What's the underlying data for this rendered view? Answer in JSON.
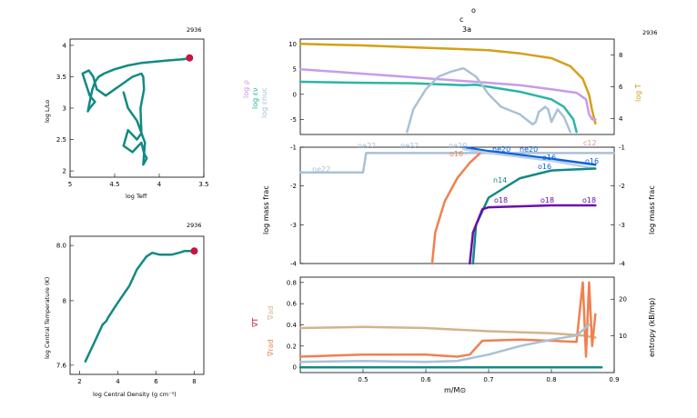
{
  "header": {
    "title_top": "c",
    "title_mid": "3a",
    "title_sup": "o"
  },
  "panels": {
    "hr": {
      "model": "2936",
      "xlabel": "log Teff",
      "ylabel": "log L/Lo",
      "xticks": [
        "5",
        "4.5",
        "4",
        "3.5"
      ],
      "yticks": [
        "4",
        "3.5",
        "3",
        "2.5",
        "2"
      ],
      "dot_color": "#c8143c",
      "line_color": "#128a84"
    },
    "core": {
      "model": "2936",
      "xlabel": "log Central Density (g cm⁻³)",
      "ylabel": "log Central Temperature (K)",
      "xticks": [
        "2",
        "4",
        "6",
        "8"
      ],
      "yticks": [
        "8.0",
        "8",
        "7.6"
      ],
      "dot_color": "#c8143c",
      "line_color": "#128a84"
    },
    "profile": {
      "model": "2936",
      "left_ticks": [
        "10",
        "5",
        "0",
        "-5"
      ],
      "right_ticks": [
        "8",
        "6",
        "4"
      ],
      "left_labels": [
        "log ρ",
        "log εν",
        "log εnuc"
      ],
      "right_label": "log T"
    },
    "abund": {
      "ylabel_left": "log mass frac",
      "ylabel_right": "log mass frac",
      "yticks": [
        "-1",
        "-2",
        "-3",
        "-4"
      ],
      "species": [
        "ne22",
        "ne22",
        "ne22",
        "ne20",
        "o16",
        "ne20",
        "ne20",
        "c12",
        "o16",
        "n14",
        "o16",
        "o16",
        "o18",
        "o18",
        "o18"
      ]
    },
    "mix": {
      "xlabel": "m/M⊙",
      "ylabel_right": "entropy (kB/mp)",
      "left_ticks": [
        "0.8",
        "0.6",
        "0.4",
        "0.2",
        "0"
      ],
      "right_ticks": [
        "20",
        "10"
      ],
      "xticks": [
        "0.5",
        "0.6",
        "0.7",
        "0.8",
        "0.9"
      ],
      "labels": [
        "∇ad",
        "∇T",
        "∇rad"
      ]
    }
  },
  "chart_data": [
    {
      "type": "line",
      "title": "2936",
      "xlabel": "log Teff",
      "ylabel": "log L/Lo",
      "xlim": [
        5.0,
        3.5
      ],
      "ylim": [
        1.9,
        4.1
      ],
      "series": [
        {
          "x": [
            4.75,
            4.72,
            4.68,
            4.62,
            4.5,
            4.35,
            4.2,
            4.05,
            3.9,
            3.8,
            3.72,
            3.66
          ],
          "y": [
            3.3,
            3.42,
            3.5,
            3.55,
            3.62,
            3.68,
            3.72,
            3.74,
            3.76,
            3.77,
            3.78,
            3.8
          ]
        },
        {
          "x": [
            4.75,
            4.78,
            4.8,
            4.78,
            4.75,
            4.72,
            4.78,
            4.86,
            4.79,
            4.74,
            4.7,
            4.6,
            4.5,
            4.3,
            4.2,
            4.18,
            4.17,
            4.21,
            4.2,
            4.25,
            4.35,
            4.4,
            4.3,
            4.2,
            4.17,
            4.14,
            4.18,
            4.16,
            4.25,
            4.35,
            4.4
          ],
          "y": [
            3.3,
            3.1,
            2.95,
            3.0,
            3.05,
            3.1,
            3.2,
            3.55,
            3.6,
            3.5,
            3.3,
            3.2,
            3.3,
            3.5,
            3.55,
            3.5,
            3.3,
            3.0,
            2.6,
            2.5,
            2.65,
            2.4,
            2.3,
            2.45,
            2.28,
            2.2,
            2.1,
            2.45,
            2.8,
            3.0,
            3.25
          ]
        }
      ],
      "marker": {
        "x": 3.66,
        "y": 3.8
      }
    },
    {
      "type": "line",
      "title": "2936",
      "xlabel": "log Central Density (g cm⁻³)",
      "ylabel": "log Central Temperature (K)",
      "xlim": [
        1.5,
        8.5
      ],
      "ylim": [
        7.45,
        8.2
      ],
      "series": [
        {
          "x": [
            2.3,
            2.8,
            3.2,
            3.3,
            3.4,
            3.5,
            4.0,
            4.6,
            5.0,
            5.5,
            5.8,
            6.2,
            6.8,
            7.2,
            7.5,
            7.8,
            8.0
          ],
          "y": [
            7.52,
            7.63,
            7.72,
            7.73,
            7.74,
            7.76,
            7.84,
            7.93,
            8.02,
            8.09,
            8.11,
            8.1,
            8.1,
            8.11,
            8.12,
            8.12,
            8.12
          ]
        }
      ],
      "marker": {
        "x": 8.0,
        "y": 8.12
      }
    },
    {
      "type": "line",
      "xlabel": "m/M⊙",
      "xlim": [
        0.4,
        0.9
      ],
      "ylim": [
        -8,
        11
      ],
      "y2lim": [
        3,
        9
      ],
      "series": [
        {
          "name": "log T",
          "axis": "right",
          "color": "#d4a017",
          "x": [
            0.4,
            0.5,
            0.6,
            0.7,
            0.75,
            0.8,
            0.83,
            0.85,
            0.86,
            0.865,
            0.87
          ],
          "y": [
            8.7,
            8.6,
            8.45,
            8.3,
            8.1,
            7.8,
            7.3,
            6.5,
            5.5,
            4.5,
            3.7
          ]
        },
        {
          "name": "log ρ",
          "axis": "left",
          "color": "#c99be8",
          "x": [
            0.4,
            0.5,
            0.6,
            0.7,
            0.75,
            0.8,
            0.84,
            0.855,
            0.86,
            0.865,
            0.87
          ],
          "y": [
            5,
            4.1,
            3.2,
            2.3,
            1.8,
            1.0,
            0.3,
            -1.0,
            -4.0,
            -5.0,
            -5.0
          ]
        },
        {
          "name": "log εν",
          "axis": "left",
          "color": "#2ab5a8",
          "x": [
            0.4,
            0.5,
            0.58,
            0.62,
            0.66,
            0.68,
            0.7,
            0.75,
            0.8,
            0.82,
            0.835,
            0.84
          ],
          "y": [
            2.5,
            2.3,
            2.2,
            2.0,
            1.8,
            1.9,
            1.5,
            0.5,
            -1.0,
            -2.5,
            -5.0,
            -7.5
          ]
        },
        {
          "name": "log εnuc",
          "axis": "left",
          "color": "#a9c1d6",
          "x": [
            0.57,
            0.58,
            0.6,
            0.62,
            0.64,
            0.66,
            0.68,
            0.7,
            0.72,
            0.75,
            0.77,
            0.775,
            0.78,
            0.79,
            0.795,
            0.8,
            0.81,
            0.82,
            0.83
          ],
          "y": [
            -7.5,
            -3,
            1.0,
            3.5,
            4.5,
            5.2,
            3.5,
            0.0,
            -2.5,
            -4.0,
            -6.0,
            -5.5,
            -3.5,
            -2.5,
            -3.0,
            -5.5,
            -3.0,
            -4.5,
            -7.5
          ]
        }
      ]
    },
    {
      "type": "line",
      "xlabel": "m/M⊙",
      "ylabel": "log mass frac",
      "xlim": [
        0.4,
        0.9
      ],
      "ylim": [
        -4,
        -1
      ],
      "series": [
        {
          "name": "ne22",
          "color": "#a9c1d6",
          "x": [
            0.4,
            0.5,
            0.505,
            0.9
          ],
          "y": [
            -1.65,
            -1.65,
            -1.15,
            -1.15
          ]
        },
        {
          "name": "ne20",
          "color": "#f08050",
          "x": [
            0.61,
            0.615,
            0.63,
            0.65,
            0.67,
            0.69
          ],
          "y": [
            -4.0,
            -3.2,
            -2.4,
            -1.8,
            -1.4,
            -1.1
          ]
        },
        {
          "name": "o16",
          "color": "#0a5fe0",
          "x": [
            0.66,
            0.7,
            0.8,
            0.87
          ],
          "y": [
            -1.0,
            -1.1,
            -1.3,
            -1.45
          ]
        },
        {
          "name": "c12",
          "color": "#b9d0e2",
          "x": [
            0.66,
            0.7,
            0.8,
            0.87
          ],
          "y": [
            -1.05,
            -1.15,
            -1.35,
            -1.55
          ]
        },
        {
          "name": "n14",
          "color": "#128a84",
          "x": [
            0.675,
            0.68,
            0.7,
            0.75,
            0.8,
            0.87
          ],
          "y": [
            -4.0,
            -3.0,
            -2.3,
            -1.8,
            -1.6,
            -1.55
          ]
        },
        {
          "name": "o18",
          "color": "#6a0dad",
          "x": [
            0.67,
            0.675,
            0.69,
            0.7,
            0.8,
            0.87
          ],
          "y": [
            -4.0,
            -3.2,
            -2.6,
            -2.55,
            -2.5,
            -2.5
          ]
        }
      ]
    },
    {
      "type": "line",
      "xlabel": "m/M⊙",
      "xlim": [
        0.4,
        0.9
      ],
      "ylim": [
        -0.05,
        0.85
      ],
      "y2lim": [
        0,
        26
      ],
      "series": [
        {
          "name": "∇ad",
          "color": "#d2b48c",
          "x": [
            0.4,
            0.5,
            0.6,
            0.7,
            0.8,
            0.85,
            0.87
          ],
          "y": [
            0.37,
            0.38,
            0.37,
            0.34,
            0.32,
            0.3,
            0.28
          ]
        },
        {
          "name": "∇rad",
          "color": "#f08050",
          "x": [
            0.4,
            0.5,
            0.6,
            0.65,
            0.67,
            0.69,
            0.75,
            0.8,
            0.84,
            0.85,
            0.855,
            0.86,
            0.865,
            0.87
          ],
          "y": [
            0.1,
            0.12,
            0.12,
            0.1,
            0.12,
            0.25,
            0.26,
            0.25,
            0.24,
            0.8,
            0.1,
            0.8,
            0.2,
            0.5
          ]
        },
        {
          "name": "entropy",
          "color": "#a9c1d6",
          "x": [
            0.4,
            0.5,
            0.6,
            0.65,
            0.7,
            0.75,
            0.8,
            0.84,
            0.86
          ],
          "y": [
            0.05,
            0.06,
            0.05,
            0.06,
            0.12,
            0.2,
            0.26,
            0.3,
            0.4
          ]
        },
        {
          "name": "zero",
          "color": "#128a84",
          "x": [
            0.4,
            0.88
          ],
          "y": [
            0.0,
            0.0
          ]
        }
      ]
    }
  ]
}
